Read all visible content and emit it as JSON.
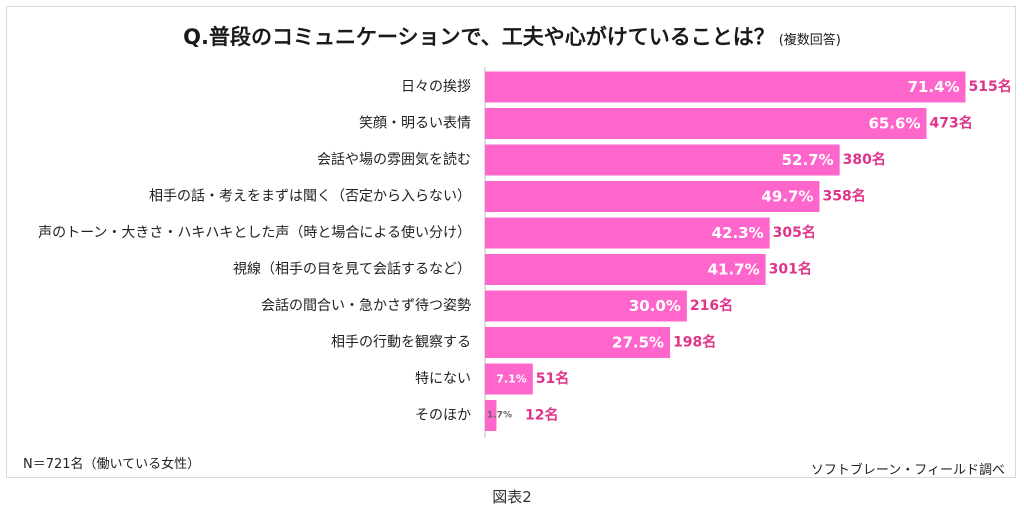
{
  "chart_data": {
    "type": "bar",
    "orientation": "horizontal",
    "title": "Q.普段のコミュニケーションで、工夫や心がけていることは？",
    "subtitle": "(複数回答)",
    "categories": [
      "日々の挨拶",
      "笑顔・明るい表情",
      "会話や場の雰囲気を読む",
      "相手の話・考えをまずは聞く（否定から入らない）",
      "声のトーン・大きさ・ハキハキとした声（時と場合による使い分け）",
      "視線（相手の目を見て会話するなど）",
      "会話の間合い・急かさず待つ姿勢",
      "相手の行動を観察する",
      "特にない",
      "そのほか"
    ],
    "values": [
      71.4,
      65.6,
      52.7,
      49.7,
      42.3,
      41.7,
      30.0,
      27.5,
      7.1,
      1.7
    ],
    "percent_labels": [
      "71.4%",
      "65.6%",
      "52.7%",
      "49.7%",
      "42.3%",
      "41.7%",
      "30.0%",
      "27.5%",
      "7.1%",
      "1.7%"
    ],
    "count_labels": [
      "515名",
      "473名",
      "380名",
      "358名",
      "305名",
      "301名",
      "216名",
      "198名",
      "51名",
      "12名"
    ],
    "xlim": [
      0,
      100
    ],
    "grid": false,
    "bar_color": "#ff66cc",
    "count_color": "#e0338a"
  },
  "note": "N＝721名（働いている女性）",
  "source": "ソフトブレーン・フィールド調べ",
  "caption": "図表2"
}
